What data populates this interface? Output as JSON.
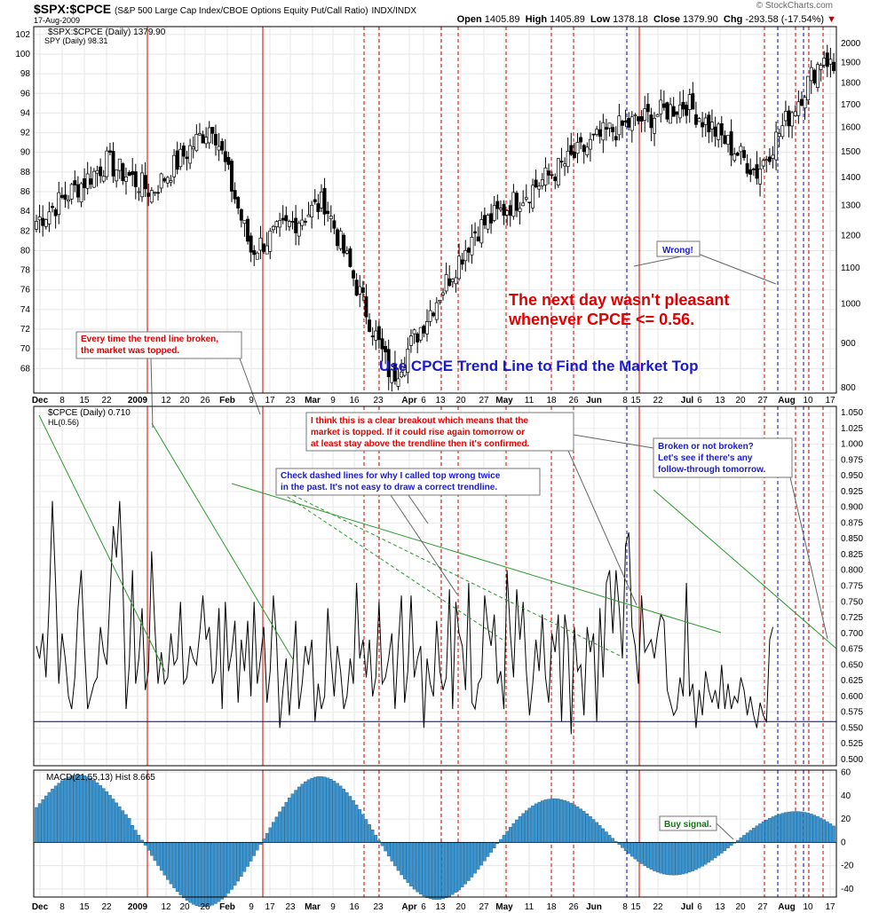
{
  "header": {
    "symbol": "$SPX:$CPCE",
    "description": "(S&P 500 Large Cap Index/CBOE Options Equity Put/Call Ratio)",
    "exchange": "INDX/INDX",
    "date": "17-Aug-2009",
    "credit": "© StockCharts.com",
    "open_label": "Open",
    "open": "1405.89",
    "high_label": "High",
    "high": "1405.89",
    "low_label": "Low",
    "low": "1378.18",
    "close_label": "Close",
    "close": "1379.90",
    "chg_label": "Chg",
    "chg": "-293.58 (-17.54%)"
  },
  "colors": {
    "candle_up": "#ffffff",
    "candle_down": "#000000",
    "trendline": "#2a9a2a",
    "dashed_red": "#d00000",
    "dashed_blue": "#0000c0",
    "hline": "#000080",
    "macd_hist": "#3d95d0",
    "annotation_red": "#e00000",
    "annotation_blue": "#1a1ad0",
    "annotation_green": "#0a7a0a"
  },
  "x_axis_labels": [
    "Dec",
    "8",
    "15",
    "22",
    "2009",
    "12",
    "20",
    "26",
    "Feb",
    "9",
    "17",
    "23",
    "Mar",
    "9",
    "16",
    "23",
    "Apr",
    "6",
    "13",
    "20",
    "27",
    "May",
    "11",
    "18",
    "26",
    "Jun",
    "8",
    "15",
    "22",
    "Jul",
    "6",
    "13",
    "20",
    "27",
    "Aug",
    "10",
    "17"
  ],
  "chart_data": [
    {
      "type": "candlestick",
      "panel": "price",
      "legend": [
        "$SPX:$CPCE (Daily) 1379.90",
        "SPY (Daily) 98.31"
      ],
      "left_axis": {
        "name": "SPY",
        "ticks": [
          68,
          70,
          72,
          74,
          76,
          78,
          80,
          82,
          84,
          86,
          88,
          90,
          92,
          94,
          96,
          98,
          100,
          102
        ],
        "range": [
          65.5,
          102.8
        ]
      },
      "right_axis": {
        "name": "$SPX:$CPCE",
        "ticks": [
          800,
          900,
          1000,
          1100,
          1200,
          1300,
          1400,
          1500,
          1600,
          1700,
          1800,
          1900,
          2000
        ],
        "log": true
      },
      "key_points": [
        {
          "date": "Dec 1",
          "close": 83
        },
        {
          "date": "Dec 10",
          "close": 89
        },
        {
          "date": "Dec 22",
          "close": 86
        },
        {
          "date": "Jan 6",
          "close": 93
        },
        {
          "date": "Jan 20",
          "close": 80
        },
        {
          "date": "Feb 9",
          "close": 85
        },
        {
          "date": "Mar 9",
          "close": 67
        },
        {
          "date": "Mar 26",
          "close": 82
        },
        {
          "date": "May 8",
          "close": 92
        },
        {
          "date": "Jun 12",
          "close": 95
        },
        {
          "date": "Jul 10",
          "close": 88
        },
        {
          "date": "Aug 14",
          "close": 100
        },
        {
          "date": "Aug 17",
          "close": 98.31
        }
      ],
      "annotations": [
        "Every time the trend line broken, the market was topped.",
        "Use CPCE Trend Line to Find the Market Top",
        "The next day wasn't pleasant whenever CPCE <= 0.56.",
        "Wrong!"
      ]
    },
    {
      "type": "line",
      "panel": "cpce",
      "legend": [
        "$CPCE (Daily) 0.710",
        "HL(0.56)"
      ],
      "y_ticks": [
        "0.500",
        "0.525",
        "0.550",
        "0.575",
        "0.600",
        "0.625",
        "0.650",
        "0.675",
        "0.700",
        "0.725",
        "0.750",
        "0.775",
        "0.800",
        "0.825",
        "0.850",
        "0.875",
        "0.900",
        "0.925",
        "0.950",
        "0.975",
        "1.000",
        "1.025",
        "1.050"
      ],
      "ylim": [
        0.49,
        1.06
      ],
      "hline": 0.56,
      "series": [
        {
          "name": "$CPCE (Daily)",
          "values": [
            0.68,
            0.66,
            0.7,
            0.63,
            0.75,
            0.91,
            0.78,
            0.62,
            0.7,
            0.66,
            0.6,
            0.58,
            0.63,
            0.74,
            0.8,
            0.68,
            0.58,
            0.6,
            0.62,
            0.63,
            0.71,
            0.67,
            0.65,
            0.76,
            0.87,
            0.82,
            0.91,
            0.78,
            0.58,
            0.65,
            0.8,
            0.62,
            0.66,
            0.74,
            0.61,
            0.64,
            0.83,
            0.71,
            0.62,
            0.67,
            0.62,
            0.63,
            0.7,
            0.65,
            0.66,
            0.75,
            0.62,
            0.63,
            0.68,
            0.66,
            0.65,
            0.7,
            0.76,
            0.69,
            0.71,
            0.62,
            0.64,
            0.74,
            0.58,
            0.75,
            0.64,
            0.67,
            0.72,
            0.59,
            0.69,
            0.64,
            0.72,
            0.6,
            0.75,
            0.62,
            0.66,
            0.71,
            0.59,
            0.64,
            0.76,
            0.69,
            0.55,
            0.61,
            0.66,
            0.57,
            0.64,
            0.72,
            0.58,
            0.62,
            0.68,
            0.65,
            0.69,
            0.56,
            0.62,
            0.58,
            0.6,
            0.74,
            0.66,
            0.6,
            0.68,
            0.64,
            0.58,
            0.6,
            0.66,
            0.62,
            0.78,
            0.66,
            0.69,
            0.63,
            0.69,
            0.6,
            0.63,
            0.75,
            0.62,
            0.63,
            0.66,
            0.7,
            0.58,
            0.68,
            0.76,
            0.59,
            0.64,
            0.76,
            0.63,
            0.66,
            0.68,
            0.55,
            0.66,
            0.62,
            0.6,
            0.72,
            0.64,
            0.61,
            0.63,
            0.77,
            0.58,
            0.75,
            0.7,
            0.68,
            0.61,
            0.78,
            0.59,
            0.58,
            0.62,
            0.63,
            0.76,
            0.71,
            0.68,
            0.73,
            0.62,
            0.64,
            0.58,
            0.8,
            0.7,
            0.63,
            0.77,
            0.69,
            0.75,
            0.64,
            0.57,
            0.62,
            0.69,
            0.64,
            0.73,
            0.63,
            0.59,
            0.7,
            0.67,
            0.73,
            0.56,
            0.73,
            0.69,
            0.54,
            0.71,
            0.64,
            0.65,
            0.57,
            0.71,
            0.67,
            0.7,
            0.56,
            0.74,
            0.63,
            0.78,
            0.8,
            0.7,
            0.8,
            0.74,
            0.66,
            0.84,
            0.86,
            0.71,
            0.68,
            0.62,
            0.76,
            0.67,
            0.68,
            0.69,
            0.66,
            0.7,
            0.73,
            0.72,
            0.61,
            0.59,
            0.57,
            0.58,
            0.63,
            0.6,
            0.78,
            0.6,
            0.62,
            0.55,
            0.61,
            0.57,
            0.64,
            0.61,
            0.59,
            0.61,
            0.58,
            0.65,
            0.58,
            0.62,
            0.58,
            0.6,
            0.59,
            0.63,
            0.61,
            0.57,
            0.6,
            0.57,
            0.55,
            0.59,
            0.57,
            0.56,
            0.69,
            0.71
          ]
        }
      ],
      "annotations": [
        "I think this is a clear breakout which means that the market is topped. If it could rise again tomorrow or at least stay above the trendline then it's confirmed.",
        "Check dashed lines for why I called top wrong twice in the past. It's not easy to draw a correct trendline.",
        "Broken or not broken? Let's see if there's any follow-through tomorrow."
      ]
    },
    {
      "type": "bar",
      "panel": "macd",
      "legend": [
        "MACD(21,55,13) Hist 8.665"
      ],
      "y_ticks": [
        -40,
        -20,
        0,
        20,
        40,
        60
      ],
      "ylim": [
        -47,
        62
      ],
      "annotations": [
        "Buy signal."
      ]
    }
  ],
  "panels_text": {
    "price_legend_1": "$SPX:$CPCE (Daily) 1379.90",
    "price_legend_2": "SPY (Daily) 98.31",
    "cpce_legend_1": "$CPCE (Daily) 0.710",
    "cpce_legend_2": "HL(0.56)",
    "macd_legend": "MACD(21,55,13) Hist 8.665"
  },
  "annotations": {
    "trend_break": [
      "Every time the trend line broken,",
      "the market was topped."
    ],
    "title": "Use CPCE Trend Line to Find the Market Top",
    "next_day": [
      "The next day wasn't pleasant",
      "whenever CPCE <= 0.56."
    ],
    "wrong": "Wrong!",
    "breakout": [
      "I think this is a clear breakout which means that the",
      "market is topped. If it could rise again tomorrow or",
      "at least stay above the trendline then it's confirmed."
    ],
    "dashed": [
      "Check dashed lines for why I called top wrong twice",
      "in the past. It's not easy to draw a correct trendline."
    ],
    "broken": [
      "Broken or not broken?",
      "Let's see if there's any",
      "follow-through tomorrow."
    ],
    "buy": "Buy signal."
  }
}
